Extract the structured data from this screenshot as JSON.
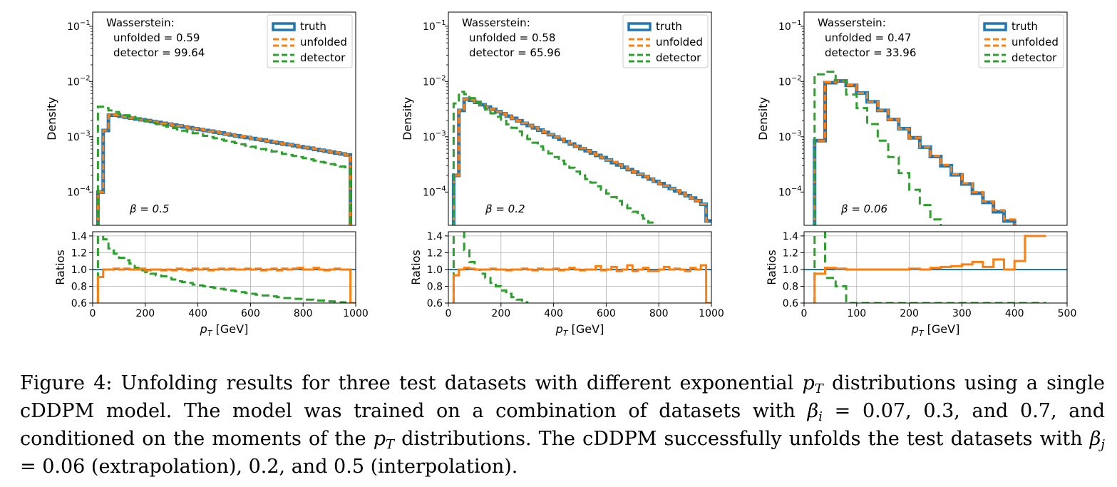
{
  "chart_data": [
    {
      "type": "histogram",
      "beta_label": "β = 0.5",
      "wasserstein": {
        "title": "Wasserstein:",
        "unfolded": "unfolded = 0.59",
        "detector": "detector = 99.64"
      },
      "ylabel_top": "Density",
      "ylabel_bottom": "Ratios",
      "xlim": [
        0,
        1000
      ],
      "xticks": [
        0,
        200,
        400,
        600,
        800,
        1000
      ],
      "top_yscale": "log",
      "top_ylim": [
        2.5e-05,
        0.18
      ],
      "ratio_ylim": [
        0.6,
        1.45
      ],
      "ratio_yticks": [
        "0.6",
        "0.8",
        "1.0",
        "1.2",
        "1.4"
      ],
      "legend": {
        "loc": "upper right",
        "entries": [
          "truth",
          "unfolded",
          "detector"
        ]
      },
      "bins": {
        "start": 20,
        "width": 20,
        "count": 49
      },
      "series": [
        {
          "name": "truth",
          "label": "truth",
          "color": "#1f77b4",
          "style": "solid",
          "values": [
            0.0001,
            0.0013,
            0.00245,
            0.00245,
            0.00235,
            0.00226,
            0.00218,
            0.0021,
            0.00203,
            0.00196,
            0.00189,
            0.00182,
            0.00175,
            0.00169,
            0.00163,
            0.00157,
            0.00151,
            0.00146,
            0.0014,
            0.00135,
            0.0013,
            0.00126,
            0.00121,
            0.00117,
            0.00112,
            0.00108,
            0.00104,
            0.001,
            0.00097,
            0.00093,
            0.0009,
            0.00087,
            0.00083,
            0.0008,
            0.00077,
            0.00074,
            0.00072,
            0.00069,
            0.00066,
            0.00064,
            0.00062,
            0.00059,
            0.00057,
            0.00055,
            0.00053,
            0.00051,
            0.00049,
            0.00047,
            2e-05
          ]
        },
        {
          "name": "unfolded",
          "label": "unfolded",
          "color": "#ff7f0e",
          "style": "dashed",
          "values": [
            0.0001,
            0.0013,
            0.00245,
            0.00247,
            0.00236,
            0.00227,
            0.0022,
            0.00211,
            0.00204,
            0.00195,
            0.0019,
            0.00183,
            0.00174,
            0.0017,
            0.00162,
            0.00158,
            0.00152,
            0.00145,
            0.00141,
            0.00136,
            0.00131,
            0.00125,
            0.00122,
            0.00118,
            0.00112,
            0.00109,
            0.00104,
            0.00101,
            0.00098,
            0.00093,
            0.00091,
            0.00086,
            0.00084,
            0.00081,
            0.00076,
            0.00075,
            0.00072,
            0.0007,
            0.00067,
            0.00064,
            0.00062,
            0.0006,
            0.00057,
            0.00055,
            0.00053,
            0.00052,
            0.00049,
            0.00047,
            2e-05
          ]
        },
        {
          "name": "detector",
          "label": "detector",
          "color": "#2ca02c",
          "style": "dashed",
          "values": [
            0.0035,
            0.0033,
            0.003,
            0.0028,
            0.0026,
            0.00245,
            0.0023,
            0.00215,
            0.00202,
            0.0019,
            0.00179,
            0.00169,
            0.0016,
            0.00152,
            0.00144,
            0.00136,
            0.00129,
            0.00122,
            0.00116,
            0.0011,
            0.00104,
            0.00099,
            0.00094,
            0.00089,
            0.00085,
            0.00081,
            0.00077,
            0.00073,
            0.00069,
            0.00066,
            0.00063,
            0.0006,
            0.00057,
            0.00054,
            0.00052,
            0.00049,
            0.00047,
            0.00045,
            0.00043,
            0.00041,
            0.00039,
            0.00037,
            0.00035,
            0.00034,
            0.00032,
            0.00031,
            0.00029,
            0.00028,
            2e-05
          ]
        }
      ],
      "ratios": {
        "unfolded": [
          0.91,
          1.0,
          1.0,
          1.01,
          1.0,
          1.01,
          1.0,
          1.0,
          1.01,
          0.99,
          1.0,
          1.0,
          0.99,
          1.0,
          0.99,
          1.01,
          1.0,
          0.99,
          1.01,
          1.0,
          1.01,
          0.99,
          1.0,
          1.01,
          1.0,
          1.01,
          1.0,
          1.0,
          1.01,
          1.0,
          1.01,
          0.99,
          1.0,
          1.01,
          0.99,
          1.01,
          1.0,
          1.01,
          1.02,
          1.0,
          1.0,
          1.02,
          1.0,
          0.99,
          1.0,
          1.01,
          1.0,
          1.0,
          0.6
        ],
        "detector": [
          1.6,
          1.36,
          1.25,
          1.19,
          1.14,
          1.11,
          1.07,
          1.02,
          0.99,
          0.97,
          0.95,
          0.93,
          0.92,
          0.9,
          0.88,
          0.86,
          0.85,
          0.84,
          0.82,
          0.81,
          0.8,
          0.79,
          0.78,
          0.77,
          0.76,
          0.75,
          0.74,
          0.73,
          0.72,
          0.71,
          0.7,
          0.69,
          0.69,
          0.68,
          0.67,
          0.66,
          0.66,
          0.65,
          0.65,
          0.64,
          0.64,
          0.63,
          0.63,
          0.62,
          0.62,
          0.61,
          0.61,
          0.6,
          0.6
        ]
      }
    },
    {
      "type": "histogram",
      "beta_label": "β = 0.2",
      "wasserstein": {
        "title": "Wasserstein:",
        "unfolded": "unfolded = 0.58",
        "detector": "detector = 65.96"
      },
      "ylabel_top": "Density",
      "ylabel_bottom": "Ratios",
      "xlim": [
        0,
        1000
      ],
      "xticks": [
        0,
        200,
        400,
        600,
        800,
        1000
      ],
      "top_yscale": "log",
      "top_ylim": [
        2.5e-05,
        0.18
      ],
      "ratio_ylim": [
        0.6,
        1.45
      ],
      "ratio_yticks": [
        "0.6",
        "0.8",
        "1.0",
        "1.2",
        "1.4"
      ],
      "legend": {
        "loc": "upper right",
        "entries": [
          "truth",
          "unfolded",
          "detector"
        ]
      },
      "bins": {
        "start": 20,
        "width": 20,
        "count": 49
      },
      "series": [
        {
          "name": "truth",
          "label": "truth",
          "color": "#1f77b4",
          "style": "solid",
          "values": [
            0.0002,
            0.003,
            0.0048,
            0.0046,
            0.0042,
            0.0038,
            0.00345,
            0.00315,
            0.00285,
            0.0026,
            0.00235,
            0.00215,
            0.00195,
            0.00175,
            0.0016,
            0.00145,
            0.00132,
            0.0012,
            0.00109,
            0.00099,
            0.0009,
            0.00082,
            0.00074,
            0.00067,
            0.00061,
            0.00056,
            0.00051,
            0.00046,
            0.00042,
            0.00038,
            0.00034,
            0.00031,
            0.00028,
            0.000255,
            0.00023,
            0.00021,
            0.00019,
            0.000172,
            0.000156,
            0.000142,
            0.000128,
            0.000116,
            0.000105,
            9.5e-05,
            8.6e-05,
            7.8e-05,
            7e-05,
            6e-05,
            3e-05
          ]
        },
        {
          "name": "unfolded",
          "label": "unfolded",
          "color": "#ff7f0e",
          "style": "dashed",
          "values": [
            0.0002,
            0.003,
            0.0048,
            0.00465,
            0.00425,
            0.0038,
            0.00345,
            0.00315,
            0.00287,
            0.0026,
            0.00236,
            0.00215,
            0.00195,
            0.00177,
            0.0016,
            0.00146,
            0.00132,
            0.00121,
            0.0011,
            0.00099,
            0.00091,
            0.00082,
            0.00076,
            0.00067,
            0.00062,
            0.00056,
            0.0005,
            0.00047,
            0.00042,
            0.00038,
            0.00035,
            0.00031,
            0.00028,
            0.00026,
            0.00023,
            0.00021,
            0.00019,
            0.000174,
            0.000155,
            0.000142,
            0.00013,
            0.000116,
            0.000106,
            9.5e-05,
            8.7e-05,
            7.8e-05,
            7e-05,
            6e-05,
            3e-05
          ]
        },
        {
          "name": "detector",
          "label": "detector",
          "color": "#2ca02c",
          "style": "dashed",
          "values": [
            0.004,
            0.0065,
            0.0059,
            0.005,
            0.0042,
            0.0036,
            0.0031,
            0.00265,
            0.0023,
            0.00195,
            0.00168,
            0.00145,
            0.00125,
            0.00106,
            0.00091,
            0.00078,
            0.00067,
            0.00058,
            0.0005,
            0.00043,
            0.00037,
            0.00032,
            0.000275,
            0.000235,
            0.0002,
            0.000172,
            0.000148,
            0.000127,
            0.000109,
            9.4e-05,
            8.1e-05,
            6.9e-05,
            5.9e-05,
            5.1e-05,
            4.4e-05,
            3.8e-05,
            3.3e-05,
            2.8e-05,
            2.4e-05,
            2e-05,
            1.7e-05,
            1.5e-05,
            1.3e-05,
            1.1e-05,
            1e-05,
            1e-05,
            1e-05,
            1e-05,
            1e-05
          ]
        }
      ],
      "ratios": {
        "unfolded": [
          0.93,
          1.0,
          1.02,
          1.01,
          1.0,
          1.0,
          1.0,
          1.01,
          1.0,
          1.0,
          0.99,
          1.0,
          1.0,
          1.01,
          1.0,
          0.99,
          1.01,
          1.0,
          1.0,
          1.01,
          0.99,
          1.0,
          1.02,
          1.0,
          0.99,
          1.0,
          1.0,
          1.04,
          0.99,
          1.0,
          1.03,
          0.98,
          1.0,
          1.05,
          0.98,
          1.0,
          1.02,
          0.98,
          0.98,
          1.0,
          1.03,
          1.0,
          1.01,
          1.0,
          0.98,
          1.02,
          1.0,
          1.05,
          0.6
        ],
        "detector": [
          1.6,
          1.6,
          1.23,
          1.09,
          1.0,
          0.95,
          0.9,
          0.84,
          0.8,
          0.75,
          0.71,
          0.67,
          0.64,
          0.61,
          0.59,
          0.57,
          0.55,
          0.53,
          0.52,
          0.5,
          0.49,
          0.48,
          0.47,
          0.46,
          0.45,
          0.44,
          0.44,
          0.43,
          0.42,
          0.42,
          0.41,
          0.41,
          0.4,
          0.4,
          0.4,
          0.4,
          0.4,
          0.4,
          0.4,
          0.4,
          0.4,
          0.4,
          0.4,
          0.4,
          0.4,
          0.4,
          0.4,
          0.4,
          0.4
        ]
      }
    },
    {
      "type": "histogram",
      "beta_label": "β = 0.06",
      "wasserstein": {
        "title": "Wasserstein:",
        "unfolded": "unfolded = 0.47",
        "detector": "detector = 33.96"
      },
      "ylabel_top": "Density",
      "ylabel_bottom": "Ratios",
      "xlim": [
        0,
        500
      ],
      "xticks": [
        0,
        100,
        200,
        300,
        400,
        500
      ],
      "top_yscale": "log",
      "top_ylim": [
        2.5e-05,
        0.18
      ],
      "ratio_ylim": [
        0.6,
        1.45
      ],
      "ratio_yticks": [
        "0.6",
        "0.8",
        "1.0",
        "1.2",
        "1.4"
      ],
      "legend": {
        "loc": "upper right",
        "entries": [
          "truth",
          "unfolded",
          "detector"
        ]
      },
      "bins": {
        "start": 20,
        "width": 20,
        "count": 22
      },
      "series": [
        {
          "name": "truth",
          "label": "truth",
          "color": "#1f77b4",
          "style": "solid",
          "values": [
            0.00085,
            0.0095,
            0.0102,
            0.0085,
            0.0062,
            0.0043,
            0.003,
            0.00205,
            0.0014,
            0.00096,
            0.00065,
            0.00044,
            0.0003,
            0.000205,
            0.00014,
            9.5e-05,
            6.5e-05,
            4.4e-05,
            3e-05,
            2.1e-05,
            1.4e-05,
            1e-05
          ]
        },
        {
          "name": "unfolded",
          "label": "unfolded",
          "color": "#ff7f0e",
          "style": "dashed",
          "values": [
            0.00085,
            0.0097,
            0.0103,
            0.0086,
            0.0062,
            0.0043,
            0.003,
            0.00205,
            0.0014,
            0.00096,
            0.00065,
            0.00045,
            0.00031,
            0.00021,
            0.000145,
            0.0001,
            6.8e-05,
            4.7e-05,
            3.2e-05,
            2.2e-05,
            1.5e-05,
            1.1e-05
          ]
        },
        {
          "name": "detector",
          "label": "detector",
          "color": "#2ca02c",
          "style": "dashed",
          "values": [
            0.0135,
            0.015,
            0.0105,
            0.0058,
            0.0033,
            0.0017,
            0.00085,
            0.00043,
            0.00022,
            0.00011,
            5.8e-05,
            3.2e-05,
            2.1e-05,
            1e-05,
            1e-05,
            1e-05,
            1e-05,
            1e-05,
            1e-05,
            1e-05,
            1e-05,
            1e-05
          ]
        }
      ],
      "ratios": {
        "unfolded": [
          0.95,
          1.02,
          1.01,
          1.0,
          1.0,
          1.0,
          1.0,
          1.0,
          1.0,
          1.01,
          1.0,
          1.02,
          1.03,
          1.04,
          1.06,
          1.09,
          1.03,
          1.12,
          1.0,
          1.1,
          1.4,
          1.4
        ],
        "detector": [
          1.6,
          0.9,
          0.8,
          0.6,
          0.6,
          0.6,
          0.6,
          0.6,
          0.6,
          0.6,
          0.6,
          0.6,
          0.6,
          0.6,
          0.6,
          0.6,
          0.6,
          0.6,
          0.6,
          0.6,
          0.6,
          0.6
        ]
      }
    }
  ],
  "x_axis_label": "pT [GeV]",
  "caption": {
    "fig_label": "Figure 4:",
    "line1": "Unfolding results for three test datasets with different exponential",
    "pt_var": "p",
    "pt_sub": "T",
    "line1b": "distributions using a single",
    "line2": "cDDPM model.  The model was trained on a combination of datasets with",
    "beta_i": "β",
    "beta_i_sub": "i",
    "line2b": "= 0.07, 0.3, and 0.7, and",
    "line3a": "conditioned on the moments of the",
    "line3b": "distributions. The cDDPM successfully unfolds the test datasets with",
    "beta_j": "β",
    "beta_j_sub": "j",
    "line4": "= 0.06 (extrapolation), 0.2, and 0.5 (interpolation)."
  }
}
